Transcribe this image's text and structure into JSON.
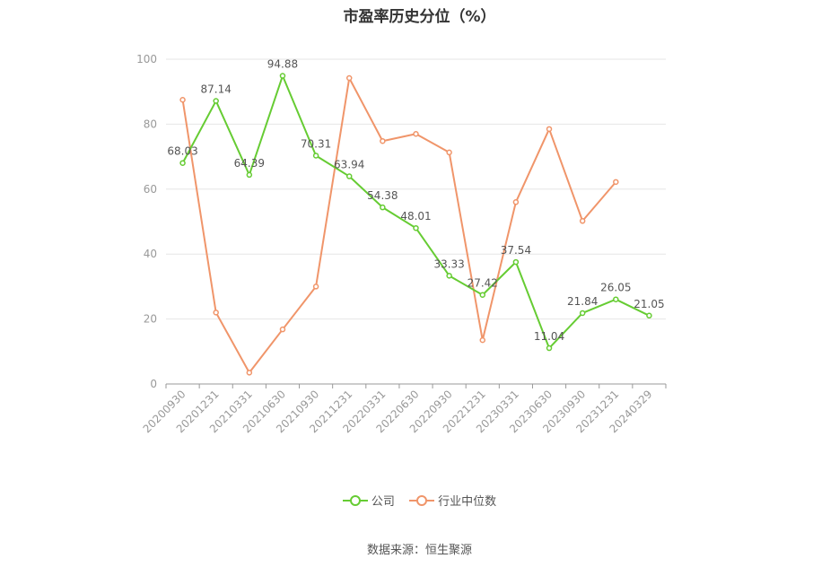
{
  "title": "市盈率历史分位（%）",
  "source": "数据来源：恒生聚源",
  "chart_data": {
    "type": "line",
    "title": "市盈率历史分位（%）",
    "xlabel": "",
    "ylabel": "",
    "ylim": [
      0,
      100
    ],
    "yticks": [
      0,
      20,
      40,
      60,
      80,
      100
    ],
    "grid": true,
    "legend_position": "bottom",
    "categories": [
      "20200930",
      "20201231",
      "20210331",
      "20210630",
      "20210930",
      "20211231",
      "20220331",
      "20220630",
      "20220930",
      "20221231",
      "20230331",
      "20230630",
      "20230930",
      "20231231",
      "20240329"
    ],
    "series": [
      {
        "name": "公司",
        "color": "#66cc33",
        "show_labels": true,
        "values": [
          68.03,
          87.14,
          64.39,
          94.88,
          70.31,
          63.94,
          54.38,
          48.01,
          33.33,
          27.42,
          37.54,
          11.04,
          21.84,
          26.05,
          21.05
        ]
      },
      {
        "name": "行业中位数",
        "color": "#f0956a",
        "show_labels": false,
        "values": [
          87.5,
          22.0,
          3.5,
          16.8,
          30.0,
          94.2,
          74.8,
          77.0,
          71.3,
          13.5,
          56.0,
          78.5,
          50.2,
          62.2,
          null
        ]
      }
    ]
  }
}
